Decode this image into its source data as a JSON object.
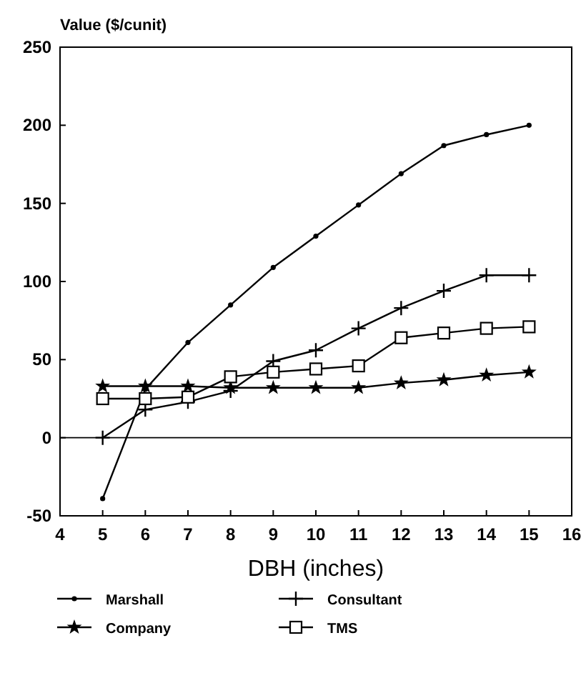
{
  "chart_data": {
    "type": "line",
    "xlabel": "DBH (inches)",
    "ylabel": "Value ($/cunit)",
    "x": [
      5,
      6,
      7,
      8,
      9,
      10,
      11,
      12,
      13,
      14,
      15
    ],
    "xlim": [
      4,
      16
    ],
    "xticks": [
      4,
      5,
      6,
      7,
      8,
      9,
      10,
      11,
      12,
      13,
      14,
      15,
      16
    ],
    "ylim": [
      -50,
      250
    ],
    "yticks": [
      -50,
      0,
      50,
      100,
      150,
      200,
      250
    ],
    "grid": false,
    "legend": "bottom",
    "line_style": "solid",
    "ref_lines": [
      {
        "axis": "y",
        "value": 0,
        "color": "#000000"
      }
    ],
    "series": [
      {
        "name": "Marshall",
        "color": "#000000",
        "marker": "circle",
        "values": [
          -39,
          31,
          61,
          85,
          109,
          129,
          149,
          169,
          187,
          194,
          200
        ]
      },
      {
        "name": "Consultant",
        "color": "#000000",
        "marker": "cross",
        "values": [
          0,
          18,
          23,
          30,
          49,
          56,
          70,
          83,
          94,
          104,
          104
        ]
      },
      {
        "name": "Company",
        "color": "#000000",
        "marker": "star",
        "values": [
          33,
          33,
          33,
          32,
          32,
          32,
          32,
          35,
          37,
          40,
          42
        ]
      },
      {
        "name": "TMS",
        "color": "#000000",
        "marker": "square",
        "values": [
          25,
          25,
          26,
          39,
          42,
          44,
          46,
          64,
          67,
          70,
          71
        ]
      }
    ]
  }
}
